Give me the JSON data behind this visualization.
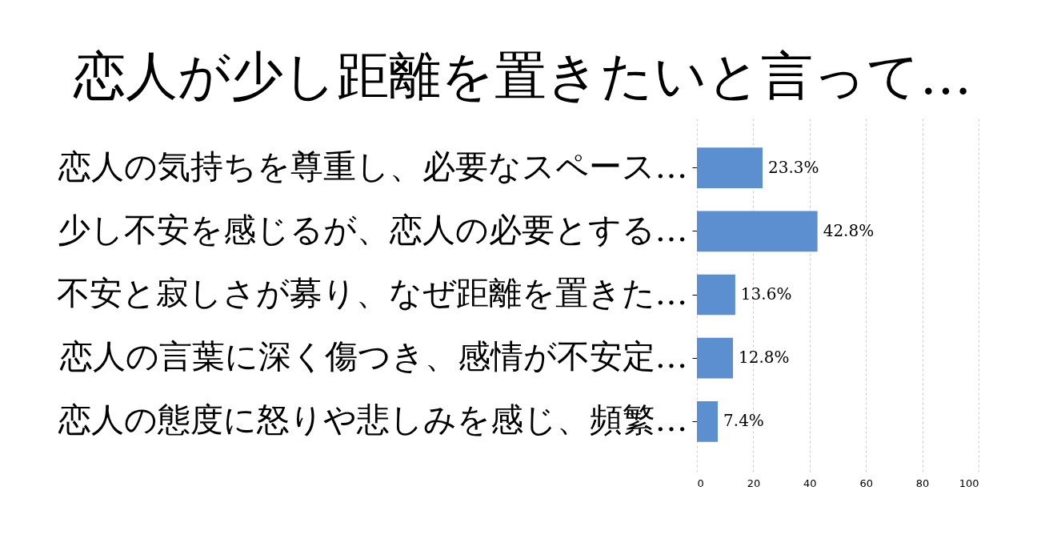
{
  "chart_data": {
    "type": "bar",
    "orientation": "horizontal",
    "title": "恋人が少し距離を置きたいと言って…",
    "categories": [
      "恋人の気持ちを尊重し、必要なスペース…",
      "少し不安を感じるが、恋人の必要とする…",
      "不安と寂しさが募り、なぜ距離を置きた…",
      "恋人の言葉に深く傷つき、感情が不安定…",
      "恋人の態度に怒りや悲しみを感じ、頻繁…"
    ],
    "values": [
      23.3,
      42.8,
      13.6,
      12.8,
      7.4
    ],
    "value_labels": [
      "23.3%",
      "42.8%",
      "13.6%",
      "12.8%",
      "7.4%"
    ],
    "color": "#5b8fd0",
    "xlim": [
      0,
      100
    ],
    "xticks": [
      0,
      20,
      40,
      60,
      80,
      100
    ],
    "grid": "x"
  }
}
